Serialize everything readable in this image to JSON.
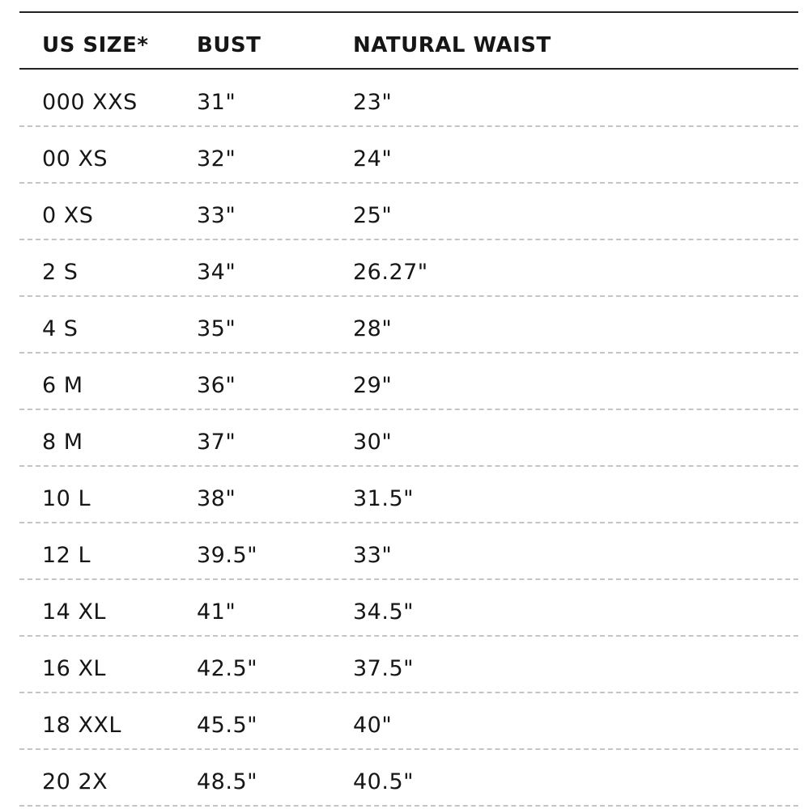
{
  "table": {
    "header": [
      "US SIZE*",
      "BUST",
      "NATURAL WAIST"
    ],
    "rows": [
      [
        "000 XXS",
        "31\"",
        "23\""
      ],
      [
        "00 XS",
        "32\"",
        "24\""
      ],
      [
        "0 XS",
        "33\"",
        "25\""
      ],
      [
        "2 S",
        "34\"",
        "26.27\""
      ],
      [
        "4 S",
        "35\"",
        "28\""
      ],
      [
        "6 M",
        "36\"",
        "29\""
      ],
      [
        "8 M",
        "37\"",
        "30\""
      ],
      [
        "10 L",
        "38\"",
        "31.5\""
      ],
      [
        "12 L",
        "39.5\"",
        "33\""
      ],
      [
        "14 XL",
        "41\"",
        "34.5\""
      ],
      [
        "16 XL",
        "42.5\"",
        "37.5\""
      ],
      [
        "18 XXL",
        "45.5\"",
        "40\""
      ],
      [
        "20 2X",
        "48.5\"",
        "40.5\""
      ]
    ]
  }
}
